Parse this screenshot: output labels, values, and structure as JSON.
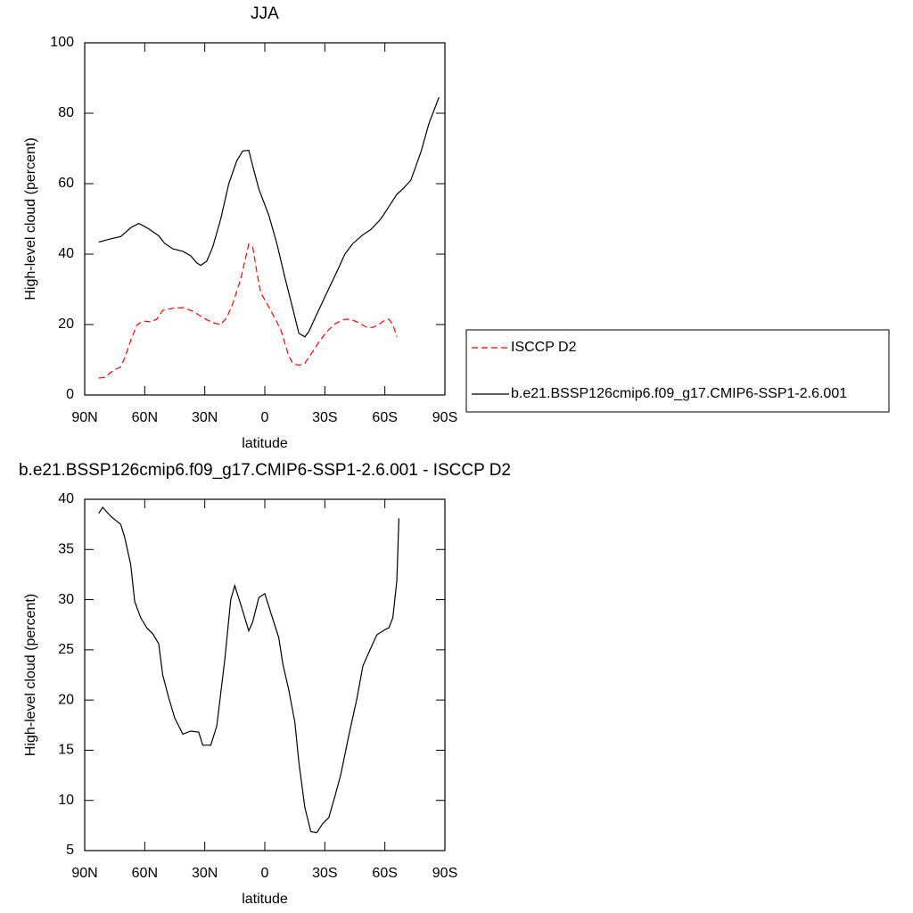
{
  "chart_data": [
    {
      "type": "line",
      "title": "JJA",
      "x_label": "latitude",
      "y_label": "High-level cloud (percent)",
      "xlim": [
        90,
        -90
      ],
      "xticks": [
        {
          "value": 90,
          "label": "90N"
        },
        {
          "value": 60,
          "label": "60N"
        },
        {
          "value": 30,
          "label": "30N"
        },
        0,
        {
          "value": -30,
          "label": "30S"
        },
        {
          "value": -60,
          "label": "60S"
        },
        {
          "value": -90,
          "label": "90S"
        }
      ],
      "ylim": [
        0,
        100
      ],
      "yticks": [
        0,
        20,
        40,
        60,
        80,
        100
      ],
      "legend": "right",
      "series": [
        {
          "name": "ISCCP D2",
          "color": "#ff0000",
          "line_style": "dashed",
          "x": [
            83,
            80,
            76,
            72,
            70,
            67,
            64,
            61,
            57,
            54,
            51,
            46,
            41,
            36,
            31,
            26,
            22,
            19,
            16,
            12,
            10,
            8,
            6,
            4,
            2,
            -3,
            -8,
            -12,
            -14,
            -17,
            -20,
            -23,
            -27,
            -31,
            -35,
            -40,
            -43,
            -47,
            -51,
            -54,
            -57,
            -60,
            -62,
            -64,
            -66
          ],
          "values": [
            4.8,
            5.0,
            6.8,
            8,
            10.5,
            15.5,
            19.8,
            21,
            20.8,
            21.5,
            24,
            24.6,
            24.8,
            23.8,
            22,
            20.5,
            20,
            22,
            26,
            33,
            38,
            42.8,
            42,
            35,
            29,
            24,
            18.5,
            11,
            9,
            8.4,
            9,
            11.5,
            15,
            18,
            20.2,
            21.5,
            21.5,
            20.5,
            19.2,
            19.2,
            20,
            21.3,
            21.5,
            20,
            16.5
          ]
        },
        {
          "name": "b.e21.BSSP126cmip6.f09_g17.CMIP6-SSP1-2.6.001",
          "color": "#000000",
          "line_style": "solid",
          "x": [
            83,
            78,
            72,
            67,
            63,
            58,
            53,
            50,
            46,
            41,
            37,
            34,
            32,
            29,
            26,
            22,
            18,
            14,
            11,
            8,
            6,
            3,
            -2,
            -6,
            -10,
            -14,
            -17,
            -20,
            -22,
            -26,
            -31,
            -36,
            -40,
            -44,
            -49,
            -53,
            -58,
            -62,
            -66,
            -69,
            -73,
            -78,
            -82,
            -87
          ],
          "values": [
            43.4,
            44.2,
            45.0,
            47.5,
            48.7,
            47.2,
            45.2,
            43,
            41.5,
            40.8,
            39.5,
            37.5,
            36.8,
            38,
            42,
            50,
            60,
            66.5,
            69.3,
            69.5,
            65,
            58.5,
            51,
            43,
            33.5,
            24.5,
            17.5,
            16.5,
            18,
            23,
            29,
            35,
            40,
            43,
            45.5,
            47,
            50,
            53.5,
            57,
            58.5,
            61,
            69,
            77,
            84.5
          ]
        }
      ]
    },
    {
      "type": "line",
      "title": "b.e21.BSSP126cmip6.f09_g17.CMIP6-SSP1-2.6.001 - ISCCP D2",
      "x_label": "latitude",
      "y_label": "High-level cloud (percent)",
      "xlim": [
        90,
        -90
      ],
      "xticks": [
        {
          "value": 90,
          "label": "90N"
        },
        {
          "value": 60,
          "label": "60N"
        },
        {
          "value": 30,
          "label": "30N"
        },
        0,
        {
          "value": -30,
          "label": "30S"
        },
        {
          "value": -60,
          "label": "60S"
        },
        {
          "value": -90,
          "label": "90S"
        }
      ],
      "ylim": [
        5,
        40
      ],
      "yticks": [
        5,
        10,
        15,
        20,
        25,
        30,
        35,
        40
      ],
      "series": [
        {
          "color": "#000000",
          "line_style": "solid",
          "x": [
            83,
            81,
            77,
            72,
            70,
            67,
            65,
            62,
            59,
            56,
            53,
            51,
            48,
            45,
            41,
            37,
            33,
            31,
            27,
            24,
            20,
            17,
            15,
            12,
            8,
            6,
            3,
            0,
            -3,
            -7,
            -9,
            -12,
            -15,
            -17,
            -20,
            -23,
            -26,
            -29,
            -32,
            -35,
            -38,
            -42,
            -46,
            -49,
            -53,
            -56,
            -60,
            -62,
            -64,
            -66,
            -67
          ],
          "values": [
            38.6,
            39.2,
            38.3,
            37.5,
            36.2,
            33.5,
            29.8,
            28.2,
            27.2,
            26.6,
            25.6,
            22.5,
            20.2,
            18.2,
            16.6,
            16.9,
            16.8,
            15.5,
            15.5,
            17.4,
            24,
            30,
            31.4,
            29.5,
            26.9,
            27.8,
            30.2,
            30.6,
            28.7,
            26.2,
            23.6,
            21,
            17.8,
            13.8,
            9.3,
            6.9,
            6.8,
            7.7,
            8.3,
            10.4,
            12.6,
            16.5,
            20.1,
            23.4,
            25.2,
            26.5,
            27.0,
            27.2,
            28.2,
            31.9,
            38.1
          ]
        }
      ]
    }
  ]
}
